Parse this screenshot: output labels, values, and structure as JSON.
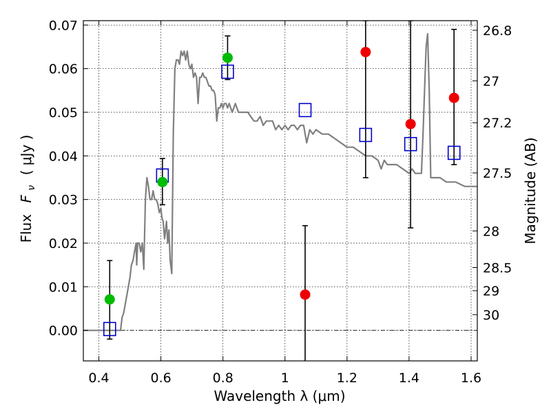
{
  "chart_data": {
    "type": "scatter",
    "title": "",
    "xlabel": "Wavelength  λ (μm)",
    "ylabel_text": "Flux",
    "ylabel_symbol": "F",
    "ylabel_subscript": "ν",
    "ylabel_units": "( μJy )",
    "y2label": "Magnitude (AB)",
    "xlim": [
      0.35,
      1.62
    ],
    "ylim": [
      -0.007,
      0.071
    ],
    "grid": true,
    "legend": "none",
    "xticks": [
      0.4,
      0.6,
      0.8,
      1.0,
      1.2,
      1.4,
      1.6
    ],
    "xtick_labels": [
      "0.4",
      "0.6",
      "0.8",
      "1",
      "1.2",
      "1.4",
      "1.6"
    ],
    "yticks": [
      0.0,
      0.01,
      0.02,
      0.03,
      0.04,
      0.05,
      0.06,
      0.07
    ],
    "ytick_labels": [
      "0.00",
      "0.01",
      "0.02",
      "0.03",
      "0.04",
      "0.05",
      "0.06",
      "0.07"
    ],
    "right_axis_ticks": [
      {
        "label": "26.8",
        "flux": 0.0688
      },
      {
        "label": "27",
        "flux": 0.0572
      },
      {
        "label": "27.2",
        "flux": 0.0476
      },
      {
        "label": "27.5",
        "flux": 0.0361
      },
      {
        "label": "28",
        "flux": 0.0228
      },
      {
        "label": "28.5",
        "flux": 0.0144
      },
      {
        "label": "29",
        "flux": 0.0091
      },
      {
        "label": "30",
        "flux": 0.0036
      }
    ],
    "series": [
      {
        "name": "model_sed",
        "kind": "line",
        "color": "#808080",
        "x": [
          0.35,
          0.47,
          0.475,
          0.48,
          0.49,
          0.5,
          0.505,
          0.51,
          0.515,
          0.52,
          0.522,
          0.525,
          0.53,
          0.535,
          0.54,
          0.545,
          0.55,
          0.555,
          0.56,
          0.565,
          0.57,
          0.575,
          0.58,
          0.585,
          0.59,
          0.595,
          0.6,
          0.603,
          0.607,
          0.612,
          0.618,
          0.622,
          0.626,
          0.63,
          0.635,
          0.64,
          0.645,
          0.65,
          0.655,
          0.66,
          0.665,
          0.67,
          0.675,
          0.68,
          0.685,
          0.69,
          0.695,
          0.7,
          0.705,
          0.71,
          0.715,
          0.72,
          0.725,
          0.73,
          0.735,
          0.74,
          0.745,
          0.75,
          0.755,
          0.76,
          0.765,
          0.77,
          0.775,
          0.78,
          0.785,
          0.79,
          0.795,
          0.8,
          0.805,
          0.81,
          0.815,
          0.82,
          0.83,
          0.84,
          0.85,
          0.86,
          0.87,
          0.88,
          0.89,
          0.9,
          0.91,
          0.92,
          0.93,
          0.94,
          0.95,
          0.96,
          0.97,
          0.98,
          0.99,
          1.0,
          1.01,
          1.02,
          1.03,
          1.04,
          1.05,
          1.06,
          1.07,
          1.08,
          1.09,
          1.1,
          1.12,
          1.14,
          1.16,
          1.18,
          1.2,
          1.22,
          1.24,
          1.26,
          1.28,
          1.3,
          1.31,
          1.32,
          1.33,
          1.34,
          1.35,
          1.36,
          1.38,
          1.4,
          1.41,
          1.42,
          1.43,
          1.44,
          1.445,
          1.45,
          1.455,
          1.46,
          1.465,
          1.47,
          1.48,
          1.5,
          1.52,
          1.55,
          1.58,
          1.62
        ],
        "y": [
          0.0,
          0.0,
          0.003,
          0.004,
          0.008,
          0.012,
          0.015,
          0.016,
          0.018,
          0.02,
          0.015,
          0.02,
          0.02,
          0.018,
          0.02,
          0.014,
          0.03,
          0.035,
          0.033,
          0.03,
          0.03,
          0.032,
          0.03,
          0.03,
          0.029,
          0.027,
          0.028,
          0.026,
          0.025,
          0.021,
          0.025,
          0.02,
          0.023,
          0.016,
          0.013,
          0.045,
          0.06,
          0.062,
          0.062,
          0.061,
          0.064,
          0.063,
          0.064,
          0.062,
          0.064,
          0.061,
          0.06,
          0.061,
          0.058,
          0.059,
          0.058,
          0.052,
          0.058,
          0.058,
          0.059,
          0.058,
          0.058,
          0.057,
          0.056,
          0.056,
          0.055,
          0.055,
          0.054,
          0.048,
          0.051,
          0.051,
          0.052,
          0.051,
          0.052,
          0.052,
          0.051,
          0.052,
          0.05,
          0.052,
          0.05,
          0.05,
          0.05,
          0.05,
          0.049,
          0.048,
          0.048,
          0.049,
          0.047,
          0.048,
          0.048,
          0.048,
          0.046,
          0.047,
          0.046,
          0.047,
          0.046,
          0.047,
          0.047,
          0.046,
          0.047,
          0.047,
          0.043,
          0.046,
          0.045,
          0.046,
          0.045,
          0.045,
          0.044,
          0.043,
          0.042,
          0.042,
          0.041,
          0.04,
          0.04,
          0.039,
          0.037,
          0.039,
          0.038,
          0.038,
          0.038,
          0.038,
          0.037,
          0.036,
          0.037,
          0.036,
          0.036,
          0.036,
          0.045,
          0.055,
          0.065,
          0.068,
          0.055,
          0.035,
          0.035,
          0.035,
          0.034,
          0.034,
          0.033,
          0.033
        ]
      },
      {
        "name": "observed_green",
        "kind": "points",
        "marker": "circle",
        "color": "#00bb00",
        "x": [
          0.435,
          0.605,
          0.815
        ],
        "y": [
          0.0071,
          0.034,
          0.0625
        ],
        "err_low": [
          0.0091,
          0.0052,
          0.005
        ],
        "err_high": [
          0.0089,
          0.0054,
          0.005
        ]
      },
      {
        "name": "observed_red",
        "kind": "points",
        "marker": "circle",
        "color": "#ee0000",
        "x": [
          1.065,
          1.26,
          1.405,
          1.545
        ],
        "y": [
          0.0082,
          0.0638,
          0.0473,
          0.0533
        ],
        "err_low": [
          0.016,
          0.0288,
          0.0238,
          0.0153
        ],
        "err_high": [
          0.0158,
          0.0072,
          0.0237,
          0.0157
        ]
      },
      {
        "name": "model_photometry",
        "kind": "points",
        "marker": "square-open",
        "color": "#0000cc",
        "x": [
          0.435,
          0.605,
          0.815,
          1.065,
          1.26,
          1.405,
          1.545
        ],
        "y": [
          0.0003,
          0.0355,
          0.0593,
          0.0505,
          0.0448,
          0.0427,
          0.0407
        ]
      }
    ]
  }
}
